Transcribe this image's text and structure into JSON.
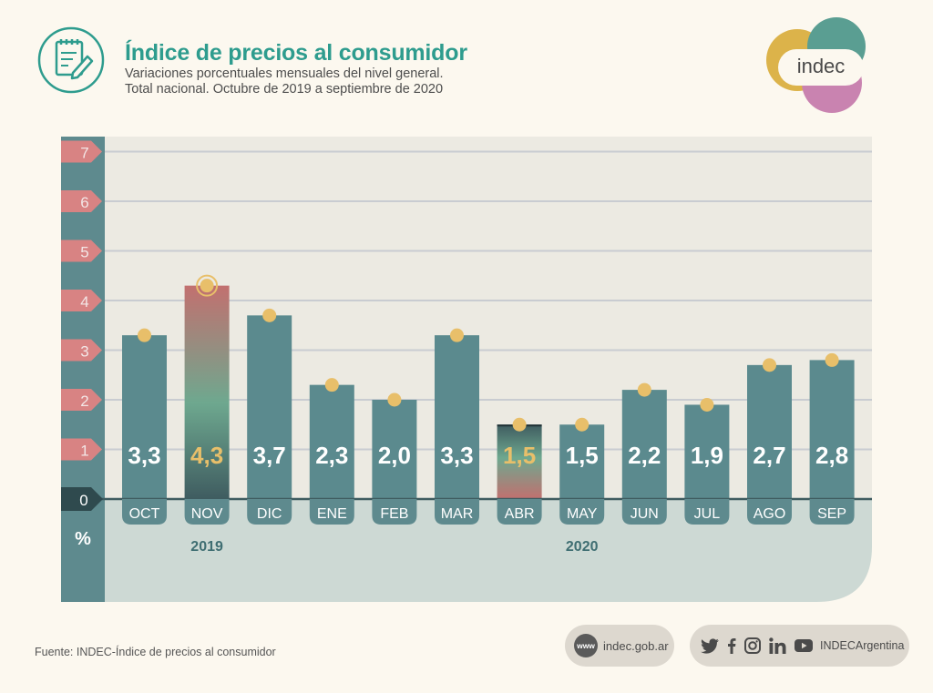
{
  "header": {
    "title": "Índice de precios al consumidor",
    "subtitle_line1": "Variaciones porcentuales mensuales del nivel general.",
    "subtitle_line2": "Total nacional. Octubre de 2019 a septiembre de 2020"
  },
  "logo": {
    "text": "indec"
  },
  "chart_data": {
    "type": "bar",
    "title": "Índice de precios al consumidor",
    "ylabel": "%",
    "ylim": [
      0,
      7
    ],
    "yticks": [
      "0",
      "1",
      "2",
      "3",
      "4",
      "5",
      "6",
      "7"
    ],
    "grid": true,
    "categories": [
      "OCT",
      "NOV",
      "DIC",
      "ENE",
      "FEB",
      "MAR",
      "ABR",
      "MAY",
      "JUN",
      "JUL",
      "AGO",
      "SEP"
    ],
    "values": [
      3.3,
      4.3,
      3.7,
      2.3,
      2.0,
      3.3,
      1.5,
      1.5,
      2.2,
      1.9,
      2.7,
      2.8
    ],
    "labels": [
      "3,3",
      "4,3",
      "3,7",
      "2,3",
      "2,0",
      "3,3",
      "1,5",
      "1,5",
      "2,2",
      "1,9",
      "2,7",
      "2,8"
    ],
    "highlighted": [
      "NOV",
      "ABR"
    ],
    "year_labels": [
      {
        "text": "2019",
        "category": "NOV"
      },
      {
        "text": "2020",
        "category": "MAY"
      }
    ],
    "colors": {
      "bar": "#5b8a8e",
      "highlight_top": "#c2706f",
      "highlight_mid": "#6ea88f",
      "highlight_bottom": "#3f5c60",
      "label": "#ffffff",
      "label_highlight": "#e8bf6a",
      "dot": "#e8bf6a",
      "axis_band": "#5e8a8e",
      "tick_marker": "#d88383",
      "plot_bg": "#eceae2",
      "lower_bg": "#cdd9d4"
    }
  },
  "footer": {
    "source": "Fuente: INDEC-Índice de precios al consumidor",
    "web_badge": "www",
    "website": "indec.gob.ar",
    "social_handle": "INDECArgentina",
    "social_icons": [
      "twitter-icon",
      "facebook-icon",
      "instagram-icon",
      "linkedin-icon",
      "youtube-icon"
    ]
  }
}
